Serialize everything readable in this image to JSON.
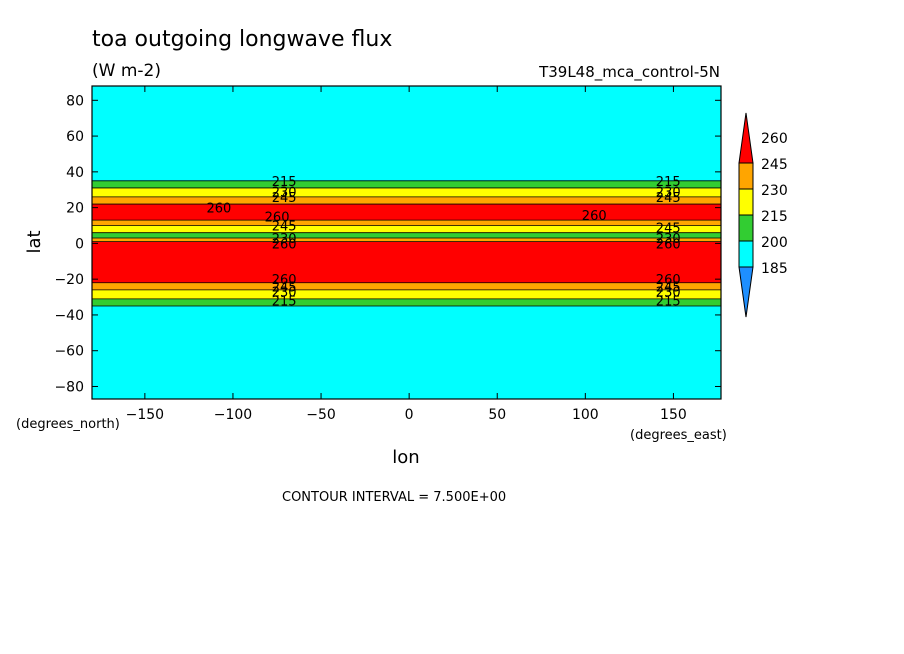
{
  "chart_data": {
    "type": "heatmap",
    "title": "toa outgoing longwave flux",
    "units": "(W m-2)",
    "run_label": "T39L48_mca_control-5N",
    "xlabel": "lon",
    "ylabel": "lat",
    "x_units_label": "(degrees_east)",
    "y_units_label": "(degrees_north)",
    "xlim": [
      -180,
      177
    ],
    "ylim": [
      -87,
      88
    ],
    "x_ticks": [
      -150,
      -100,
      -50,
      0,
      50,
      100,
      150
    ],
    "y_ticks": [
      -80,
      -60,
      -40,
      -20,
      0,
      20,
      40,
      60,
      80
    ],
    "contour_interval_text": "CONTOUR INTERVAL = 7.500E+00",
    "colorbar": {
      "levels": [
        185,
        200,
        215,
        230,
        245,
        260
      ],
      "colors": [
        "#1e8fff",
        "#00ffff",
        "#32cd32",
        "#ffff00",
        "#ffa500",
        "#ff0000"
      ],
      "extend": "both"
    },
    "zonal_bands": [
      {
        "lat_from": -87,
        "lat_to": -35,
        "value": 205
      },
      {
        "lat_from": -35,
        "lat_to": -31,
        "value": 220
      },
      {
        "lat_from": -31,
        "lat_to": -26,
        "value": 238
      },
      {
        "lat_from": -26,
        "lat_to": -22,
        "value": 252
      },
      {
        "lat_from": -22,
        "lat_to": 1,
        "value": 265
      },
      {
        "lat_from": 1,
        "lat_to": 3,
        "value": 250
      },
      {
        "lat_from": 3,
        "lat_to": 6,
        "value": 225
      },
      {
        "lat_from": 6,
        "lat_to": 10,
        "value": 238
      },
      {
        "lat_from": 10,
        "lat_to": 13,
        "value": 252
      },
      {
        "lat_from": 13,
        "lat_to": 22,
        "value": 265
      },
      {
        "lat_from": 22,
        "lat_to": 26,
        "value": 252
      },
      {
        "lat_from": 26,
        "lat_to": 31,
        "value": 238
      },
      {
        "lat_from": 31,
        "lat_to": 35,
        "value": 220
      },
      {
        "lat_from": 35,
        "lat_to": 88,
        "value": 205
      }
    ],
    "contour_labels": [
      {
        "text": "215",
        "lon": -78,
        "lat": 35
      },
      {
        "text": "230",
        "lon": -78,
        "lat": 29
      },
      {
        "text": "245",
        "lon": -78,
        "lat": 26
      },
      {
        "text": "260",
        "lon": -115,
        "lat": 20
      },
      {
        "text": "260",
        "lon": -82,
        "lat": 15
      },
      {
        "text": "245",
        "lon": -78,
        "lat": 10
      },
      {
        "text": "230",
        "lon": -78,
        "lat": 3
      },
      {
        "text": "260",
        "lon": -78,
        "lat": 0
      },
      {
        "text": "260",
        "lon": -78,
        "lat": -20
      },
      {
        "text": "245",
        "lon": -78,
        "lat": -24
      },
      {
        "text": "230",
        "lon": -78,
        "lat": -27
      },
      {
        "text": "215",
        "lon": -78,
        "lat": -32
      },
      {
        "text": "215",
        "lon": 140,
        "lat": 35
      },
      {
        "text": "230",
        "lon": 140,
        "lat": 29
      },
      {
        "text": "245",
        "lon": 140,
        "lat": 26
      },
      {
        "text": "260",
        "lon": 98,
        "lat": 16
      },
      {
        "text": "245",
        "lon": 140,
        "lat": 9
      },
      {
        "text": "230",
        "lon": 140,
        "lat": 3
      },
      {
        "text": "260",
        "lon": 140,
        "lat": 0
      },
      {
        "text": "260",
        "lon": 140,
        "lat": -20
      },
      {
        "text": "245",
        "lon": 140,
        "lat": -24
      },
      {
        "text": "230",
        "lon": 140,
        "lat": -27
      },
      {
        "text": "215",
        "lon": 140,
        "lat": -32
      }
    ]
  }
}
